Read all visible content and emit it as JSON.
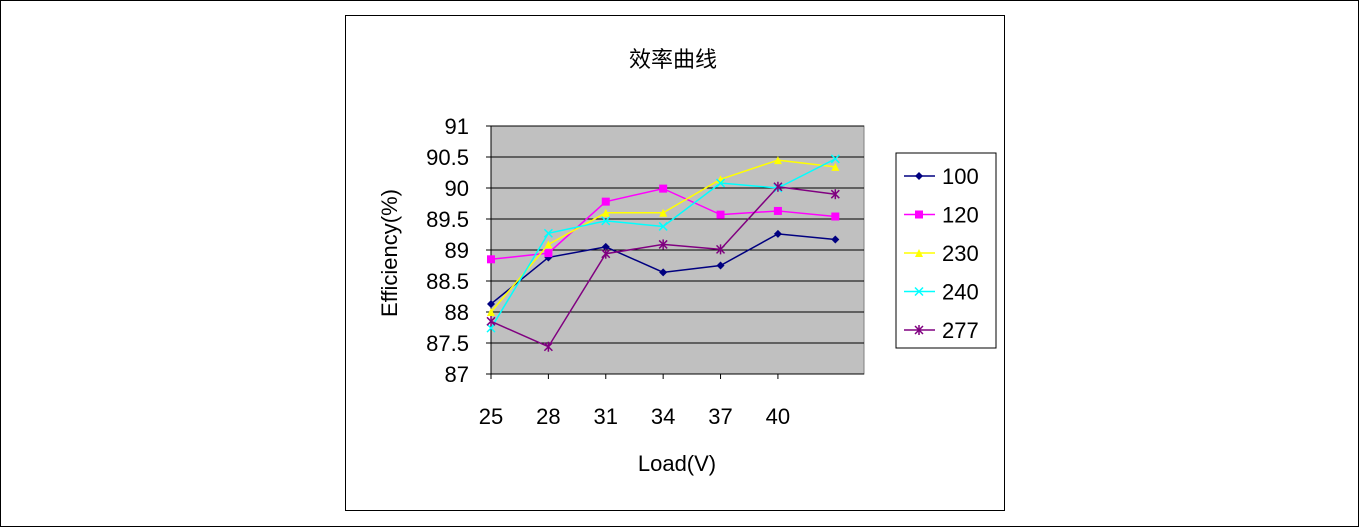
{
  "chart_data": {
    "type": "line",
    "title": "效率曲线",
    "xlabel": "Load(V)",
    "ylabel": "Efficiency(%)",
    "categories": [
      "25",
      "28",
      "31",
      "34",
      "37",
      "40",
      ""
    ],
    "x_tick_labels": [
      "25",
      "28",
      "31",
      "34",
      "37",
      "40"
    ],
    "y_tick_labels": [
      "91",
      "90.5",
      "90",
      "89.5",
      "89",
      "88.5",
      "88",
      "87.5",
      "87"
    ],
    "ylim": [
      87,
      91
    ],
    "grid": true,
    "legend_position": "right",
    "series": [
      {
        "name": "100",
        "color": "#000080",
        "marker": "diamond",
        "values": [
          88.13,
          88.88,
          89.05,
          88.64,
          88.75,
          89.26,
          89.17
        ]
      },
      {
        "name": "120",
        "color": "#ff00ff",
        "marker": "square",
        "values": [
          88.85,
          88.95,
          89.78,
          89.99,
          89.57,
          89.63,
          89.54
        ]
      },
      {
        "name": "230",
        "color": "#ffff00",
        "marker": "triangle",
        "values": [
          88.0,
          89.09,
          89.6,
          89.6,
          90.14,
          90.45,
          90.34
        ]
      },
      {
        "name": "240",
        "color": "#00ffff",
        "marker": "x",
        "values": [
          87.74,
          89.27,
          89.47,
          89.38,
          90.08,
          90.0,
          90.47
        ]
      },
      {
        "name": "277",
        "color": "#800080",
        "marker": "star",
        "values": [
          87.85,
          87.44,
          88.94,
          89.09,
          89.01,
          90.02,
          89.9
        ]
      }
    ]
  }
}
